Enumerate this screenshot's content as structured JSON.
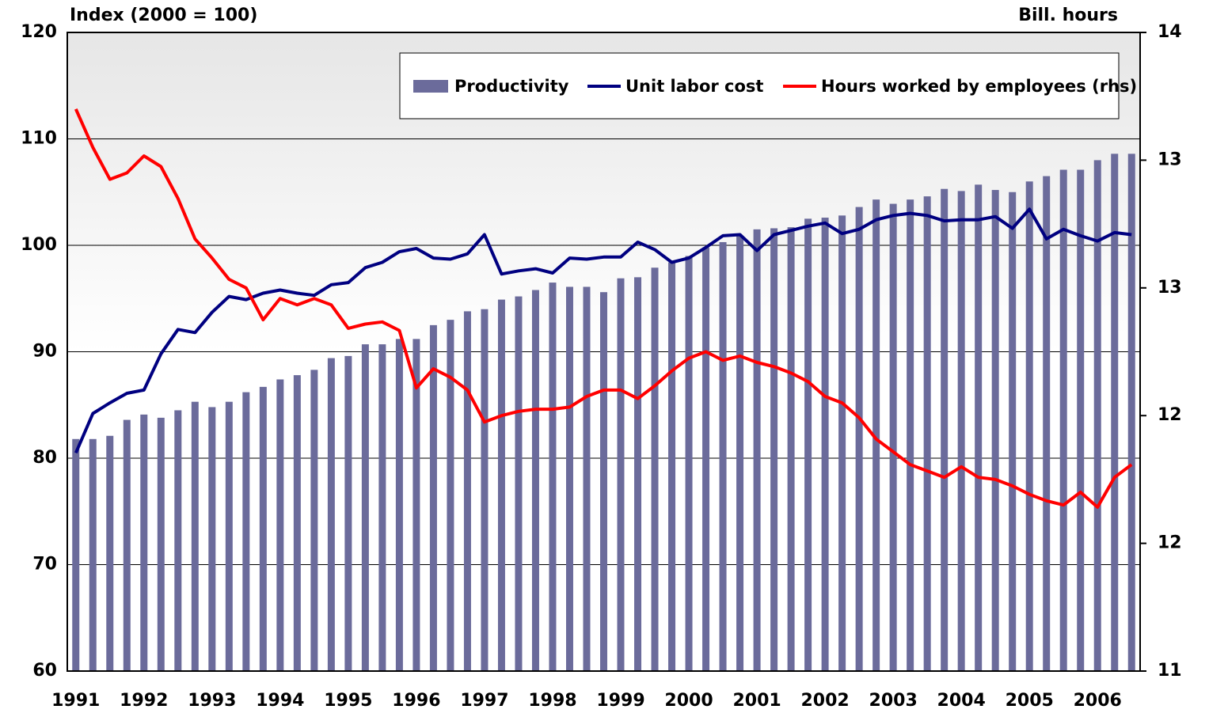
{
  "chart_data": {
    "type": "bar-line",
    "y_label": "Index (2000 = 100)",
    "y2_label": "Bill. hours",
    "categories": [
      "1991",
      null,
      null,
      null,
      "1992",
      null,
      null,
      null,
      "1993",
      null,
      null,
      null,
      "1994",
      null,
      null,
      null,
      "1995",
      null,
      null,
      null,
      "1996",
      null,
      null,
      null,
      "1997",
      null,
      null,
      null,
      "1998",
      null,
      null,
      null,
      "1999",
      null,
      null,
      null,
      "2000",
      null,
      null,
      null,
      "2001",
      null,
      null,
      null,
      "2002",
      null,
      null,
      null,
      "2003",
      null,
      null,
      null,
      "2004",
      null,
      null,
      null,
      "2005",
      null,
      null,
      null,
      "2006",
      null,
      null
    ],
    "series": [
      {
        "name": "Productivity",
        "kind": "bar",
        "color": "#6b6b9b",
        "axis": "y",
        "values": [
          81.8,
          81.8,
          82.1,
          83.6,
          84.1,
          83.8,
          84.5,
          85.3,
          84.8,
          85.3,
          86.2,
          86.7,
          87.4,
          87.8,
          88.3,
          89.4,
          89.6,
          90.7,
          90.7,
          91.2,
          91.2,
          92.5,
          93.0,
          93.8,
          94.0,
          94.9,
          95.2,
          95.8,
          96.5,
          96.1,
          96.1,
          95.6,
          96.9,
          97.0,
          97.9,
          98.4,
          99.0,
          99.8,
          100.3,
          100.9,
          101.5,
          101.6,
          101.7,
          102.5,
          102.6,
          102.8,
          103.6,
          104.3,
          103.9,
          104.3,
          104.6,
          105.3,
          105.1,
          105.7,
          105.2,
          105.0,
          106.0,
          106.5,
          107.1,
          107.1,
          108.0,
          108.6,
          108.6
        ]
      },
      {
        "name": "Unit labor cost",
        "kind": "line",
        "color": "#000080",
        "axis": "y",
        "values": [
          80.5,
          84.2,
          85.2,
          86.1,
          86.4,
          89.8,
          92.1,
          91.8,
          93.7,
          95.2,
          94.9,
          95.5,
          95.8,
          95.5,
          95.3,
          96.3,
          96.5,
          97.9,
          98.4,
          99.4,
          99.7,
          98.8,
          98.7,
          99.2,
          101.0,
          97.3,
          97.6,
          97.8,
          97.4,
          98.8,
          98.7,
          98.9,
          98.9,
          100.3,
          99.6,
          98.4,
          98.8,
          99.8,
          100.9,
          101.0,
          99.5,
          101.0,
          101.4,
          101.8,
          102.1,
          101.1,
          101.5,
          102.4,
          102.8,
          103.0,
          102.8,
          102.3,
          102.4,
          102.4,
          102.7,
          101.6,
          103.4,
          100.6,
          101.5,
          100.9,
          100.4,
          101.2,
          101.0
        ]
      },
      {
        "name": "Hours worked by employees (rhs)",
        "kind": "line",
        "color": "#ff0000",
        "axis": "y2",
        "values": [
          13.64,
          13.46,
          13.31,
          13.34,
          13.42,
          13.37,
          13.22,
          13.03,
          12.94,
          12.84,
          12.8,
          12.65,
          12.75,
          12.72,
          12.75,
          12.72,
          12.61,
          12.63,
          12.64,
          12.6,
          12.33,
          12.42,
          12.38,
          12.32,
          12.17,
          12.2,
          12.22,
          12.23,
          12.23,
          12.24,
          12.29,
          12.32,
          12.32,
          12.28,
          12.34,
          12.41,
          12.47,
          12.5,
          12.46,
          12.48,
          12.45,
          12.43,
          12.4,
          12.36,
          12.29,
          12.26,
          12.19,
          12.09,
          12.03,
          11.97,
          11.94,
          11.91,
          11.96,
          11.91,
          11.9,
          11.87,
          11.83,
          11.8,
          11.78,
          11.84,
          11.77,
          11.91,
          11.97
        ]
      }
    ],
    "ylim": [
      60,
      120
    ],
    "yticks": [
      60,
      70,
      80,
      90,
      100,
      110,
      120
    ],
    "y2lim": [
      11,
      14
    ],
    "y2ticks": [
      11,
      {
        "value": 11.6,
        "label": "12"
      },
      {
        "value": 12.2,
        "label": "12"
      },
      {
        "value": 12.8,
        "label": "13"
      },
      {
        "value": 13.4,
        "label": "13"
      },
      14
    ],
    "grid": true,
    "legend": "top-right"
  }
}
